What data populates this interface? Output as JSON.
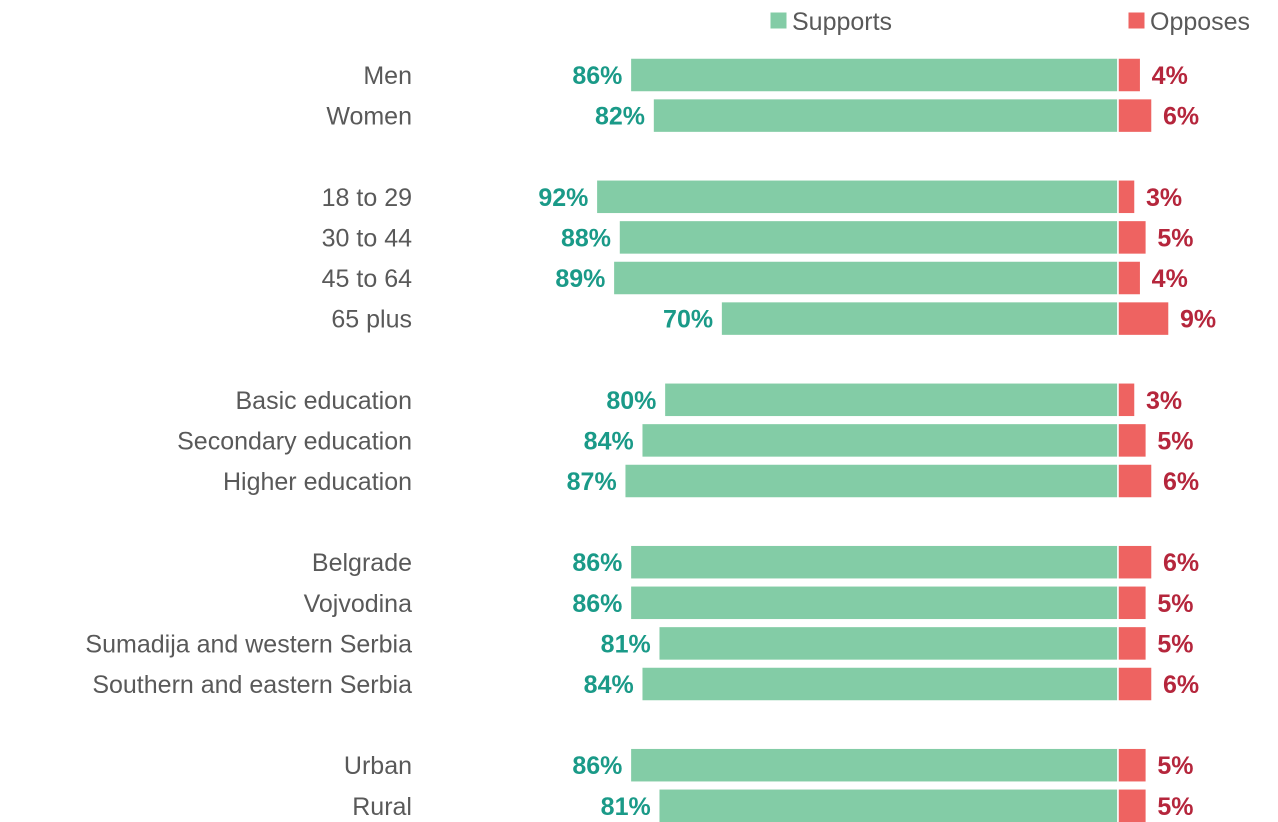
{
  "colors": {
    "supports": "#83cca6",
    "opposes": "#ee6361",
    "supports_label": "#1a9a88",
    "opposes_label": "#b5263c",
    "category_text": "#595959"
  },
  "chart_data": {
    "type": "bar",
    "orientation": "horizontal-diverging",
    "title": "",
    "xlabel": "",
    "ylabel": "",
    "grid": false,
    "legend_position": "top-right",
    "value_format": "percent",
    "groups": [
      {
        "categories": [
          "Men",
          "Women"
        ]
      },
      {
        "categories": [
          "18 to 29",
          "30 to 44",
          "45 to 64",
          "65 plus"
        ]
      },
      {
        "categories": [
          "Basic education",
          "Secondary education",
          "Higher education"
        ]
      },
      {
        "categories": [
          "Belgrade",
          "Vojvodina",
          "Sumadija and western Serbia",
          "Southern and eastern Serbia"
        ]
      },
      {
        "categories": [
          "Urban",
          "Rural"
        ]
      }
    ],
    "categories": [
      "Men",
      "Women",
      "18 to 29",
      "30 to 44",
      "45 to 64",
      "65 plus",
      "Basic education",
      "Secondary education",
      "Higher education",
      "Belgrade",
      "Vojvodina",
      "Sumadija and western Serbia",
      "Southern and eastern Serbia",
      "Urban",
      "Rural"
    ],
    "series": [
      {
        "name": "Supports",
        "values": [
          86,
          82,
          92,
          88,
          89,
          70,
          80,
          84,
          87,
          86,
          86,
          81,
          84,
          86,
          81
        ],
        "labels": [
          "86%",
          "82%",
          "92%",
          "88%",
          "89%",
          "70%",
          "80%",
          "84%",
          "87%",
          "86%",
          "86%",
          "81%",
          "84%",
          "86%",
          "81%"
        ]
      },
      {
        "name": "Opposes",
        "values": [
          4,
          6,
          3,
          5,
          4,
          9,
          3,
          5,
          6,
          6,
          5,
          5,
          6,
          5,
          5
        ],
        "labels": [
          "4%",
          "6%",
          "3%",
          "5%",
          "4%",
          "9%",
          "3%",
          "5%",
          "6%",
          "6%",
          "5%",
          "5%",
          "6%",
          "5%",
          "5%"
        ]
      }
    ]
  }
}
